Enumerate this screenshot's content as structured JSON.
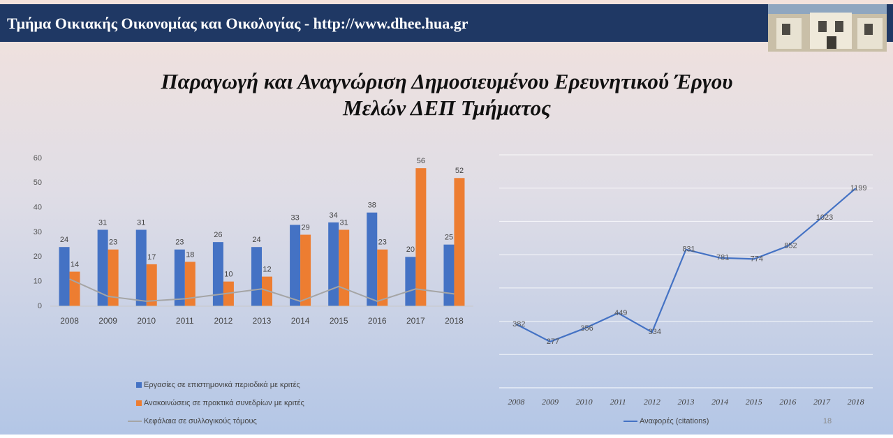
{
  "slide": {
    "header": "Τμήμα Οικιακής Οικονομίας και Οικολογίας - http://www.dhee.hua.gr",
    "title": [
      "Παραγωγή και Αναγνώριση Δημοσιευμένου Ερευνητικού Έργου",
      "Μελών ΔΕΠ Τμήματος"
    ],
    "page_number": "18"
  },
  "chart_data": [
    {
      "type": "bar",
      "categories": [
        "2008",
        "2009",
        "2010",
        "2011",
        "2012",
        "2013",
        "2014",
        "2015",
        "2016",
        "2017",
        "2018"
      ],
      "series": [
        {
          "name": "Εργασίες σε επιστημονικά περιοδικά  με κριτές",
          "color": "#4472c4",
          "values": [
            24,
            31,
            31,
            23,
            26,
            24,
            33,
            34,
            38,
            20,
            25
          ],
          "show_labels": true
        },
        {
          "name": "Ανακοινώσεις σε πρακτικά συνεδρίων με κριτές",
          "color": "#ed7d31",
          "values": [
            14,
            23,
            17,
            18,
            10,
            12,
            29,
            31,
            23,
            56,
            52
          ],
          "show_labels": true
        },
        {
          "name": "Κεφάλαια σε συλλογικούς τόμους",
          "color": "#a5a5a5",
          "type": "line",
          "values": [
            11,
            4,
            2,
            3,
            5,
            7,
            2,
            8,
            2,
            7,
            5
          ],
          "show_labels": false
        }
      ],
      "ylim": [
        0,
        60
      ],
      "yticks": [
        0,
        10,
        20,
        30,
        40,
        50,
        60
      ],
      "ytick_labels": true,
      "grid": false
    },
    {
      "type": "line",
      "categories": [
        "2008",
        "2009",
        "2010",
        "2011",
        "2012",
        "2013",
        "2014",
        "2015",
        "2016",
        "2017",
        "2018"
      ],
      "series": [
        {
          "name": "Αναφορές (citations)",
          "color": "#4472c4",
          "values": [
            382,
            277,
            356,
            449,
            334,
            831,
            781,
            774,
            852,
            1023,
            1199
          ],
          "show_labels": true
        }
      ],
      "ylim": [
        0,
        1400
      ],
      "yticks": [
        0,
        200,
        400,
        600,
        800,
        1000,
        1200,
        1400
      ],
      "ytick_labels": false,
      "grid": true
    }
  ]
}
